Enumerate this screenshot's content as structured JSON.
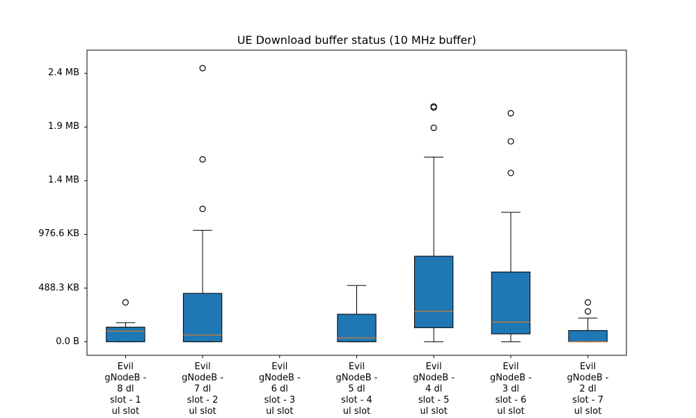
{
  "chart_data": {
    "type": "boxplot",
    "title": "UE Download buffer status (10 MHz buffer)",
    "xlabel": "",
    "ylabel": "",
    "ylim": [
      -0.12,
      2.59
    ],
    "y_unit": "MB",
    "yticks": [
      {
        "value": 0.0,
        "label": "0.0 B"
      },
      {
        "value": 0.4769,
        "label": "488.3 KB"
      },
      {
        "value": 0.9537,
        "label": "976.6 KB"
      },
      {
        "value": 1.4306,
        "label": "1.4 MB"
      },
      {
        "value": 1.9074,
        "label": "1.9 MB"
      },
      {
        "value": 2.3842,
        "label": "2.4 MB"
      }
    ],
    "categories": [
      "Evil\ngNodeB -\n8 dl\nslot - 1\nul slot",
      "Evil\ngNodeB -\n7 dl\nslot - 2\nul slot",
      "Evil\ngNodeB -\n6 dl\nslot - 3\nul slot",
      "Evil\ngNodeB -\n5 dl\nslot - 4\nul slot",
      "Evil\ngNodeB -\n4 dl\nslot - 5\nul slot",
      "Evil\ngNodeB -\n3 dl\nslot - 6\nul slot",
      "Evil\ngNodeB -\n2 dl\nslot - 7\nul slot"
    ],
    "boxes": [
      {
        "whisker_low": 0.0,
        "q1": 0.0,
        "median": 0.095,
        "q3": 0.13,
        "whisker_high": 0.17,
        "outliers": [
          0.35
        ]
      },
      {
        "whisker_low": 0.0,
        "q1": 0.0,
        "median": 0.06,
        "q3": 0.43,
        "whisker_high": 0.99,
        "outliers": [
          1.18,
          1.62,
          2.43
        ]
      },
      null,
      {
        "whisker_low": 0.0,
        "q1": 0.0,
        "median": 0.035,
        "q3": 0.245,
        "whisker_high": 0.5,
        "outliers": []
      },
      {
        "whisker_low": 0.0,
        "q1": 0.125,
        "median": 0.27,
        "q3": 0.76,
        "whisker_high": 1.64,
        "outliers": [
          1.9,
          2.08,
          2.09
        ]
      },
      {
        "whisker_low": 0.0,
        "q1": 0.07,
        "median": 0.175,
        "q3": 0.62,
        "whisker_high": 1.15,
        "outliers": [
          1.5,
          1.78,
          2.03
        ]
      },
      {
        "whisker_low": 0.0,
        "q1": 0.0,
        "median": 0.0,
        "q3": 0.1,
        "whisker_high": 0.21,
        "outliers": [
          0.27,
          0.35
        ]
      }
    ],
    "box_color": "#1f77b4",
    "median_color": "#ff7f0e",
    "grid": false,
    "legend": "none"
  }
}
